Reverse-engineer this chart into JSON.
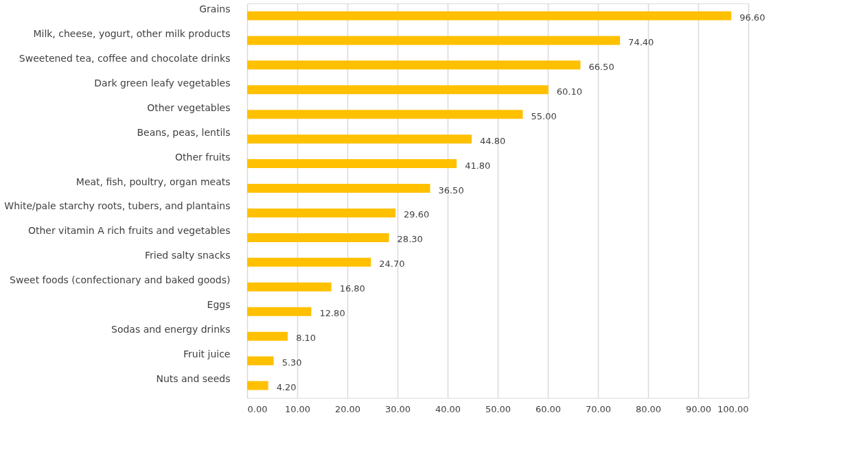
{
  "chart_data": {
    "type": "bar",
    "orientation": "horizontal",
    "categories": [
      "Grains",
      "Milk, cheese, yogurt, other milk products",
      "Sweetened tea, coffee and chocolate drinks",
      "Dark green leafy vegetables",
      "Other vegetables",
      "Beans, peas, lentils",
      "Other fruits",
      "Meat, fish, poultry, organ meats",
      "White/pale starchy roots, tubers, and plantains",
      "Other vitamin A rich fruits and vegetables",
      "Fried salty snacks",
      "Sweet foods (confectionary and baked goods)",
      "Eggs",
      "Sodas and energy drinks",
      "Fruit juice",
      "Nuts and seeds"
    ],
    "values": [
      96.6,
      74.4,
      66.5,
      60.1,
      55.0,
      44.8,
      41.8,
      36.5,
      29.6,
      28.3,
      24.7,
      16.8,
      12.8,
      8.1,
      5.3,
      4.2
    ],
    "value_labels": [
      "96.60",
      "74.40",
      "66.50",
      "60.10",
      "55.00",
      "44.80",
      "41.80",
      "36.50",
      "29.60",
      "28.30",
      "24.70",
      "16.80",
      "12.80",
      "8.10",
      "5.30",
      "4.20"
    ],
    "color": "#ffc000",
    "xlim": [
      0,
      100
    ],
    "xticks": [
      {
        "value": 0,
        "label": "0.00"
      },
      {
        "value": 10,
        "label": "10.00"
      },
      {
        "value": 20,
        "label": "20.00"
      },
      {
        "value": 30,
        "label": "30.00"
      },
      {
        "value": 40,
        "label": "40.00"
      },
      {
        "value": 50,
        "label": "50.00"
      },
      {
        "value": 60,
        "label": "60.00"
      },
      {
        "value": 70,
        "label": "70.00"
      },
      {
        "value": 80,
        "label": "80.00"
      },
      {
        "value": 90,
        "label": "90.00"
      },
      {
        "value": 100,
        "label": "100.00"
      }
    ],
    "grid": "x"
  }
}
